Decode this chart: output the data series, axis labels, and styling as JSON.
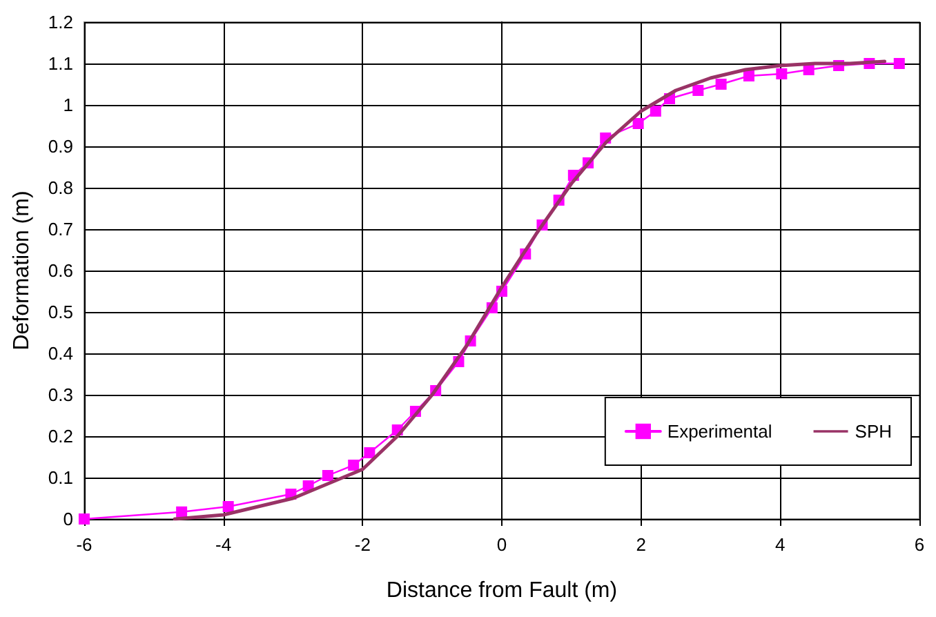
{
  "chart_data": {
    "type": "line",
    "xlabel": "Distance from Fault (m)",
    "ylabel": "Deformation (m)",
    "xlim": [
      -6,
      6
    ],
    "xticks": [
      -6,
      -4,
      -2,
      0,
      2,
      4,
      6
    ],
    "ylim": [
      0,
      1.2
    ],
    "yticks": [
      0,
      0.1,
      0.2,
      0.3,
      0.4,
      0.5,
      0.6,
      0.7,
      0.8,
      0.9,
      1,
      1.1,
      1.2
    ],
    "grid": true,
    "legend": "bottom right",
    "series": [
      {
        "name": "Experimental",
        "color": "#ff00ff",
        "marker": "square",
        "x": [
          -6,
          -4.6,
          -3.93,
          -3.03,
          -2.78,
          -2.5,
          -2.13,
          -1.9,
          -1.5,
          -1.24,
          -0.95,
          -0.62,
          -0.45,
          -0.14,
          0,
          0.34,
          0.58,
          0.82,
          1.03,
          1.24,
          1.49,
          1.96,
          2.21,
          2.41,
          2.82,
          3.15,
          3.55,
          4.02,
          4.41,
          4.84,
          5.28,
          5.71
        ],
        "values": [
          0,
          0.017,
          0.03,
          0.06,
          0.08,
          0.105,
          0.13,
          0.16,
          0.215,
          0.26,
          0.31,
          0.38,
          0.43,
          0.51,
          0.55,
          0.64,
          0.71,
          0.77,
          0.83,
          0.86,
          0.92,
          0.955,
          0.985,
          1.015,
          1.035,
          1.05,
          1.07,
          1.075,
          1.085,
          1.095,
          1.1,
          1.1
        ]
      },
      {
        "name": "SPH",
        "color": "#993366",
        "marker": "none",
        "x": [
          -4.7,
          -4,
          -3,
          -2,
          -1.5,
          -1,
          -0.5,
          0,
          0.5,
          1,
          1.5,
          2,
          2.5,
          3,
          3.5,
          4,
          4.5,
          5,
          5.5
        ],
        "values": [
          0,
          0.01,
          0.05,
          0.12,
          0.2,
          0.3,
          0.42,
          0.56,
          0.69,
          0.81,
          0.91,
          0.985,
          1.035,
          1.065,
          1.085,
          1.095,
          1.1,
          1.1,
          1.105
        ]
      }
    ]
  }
}
